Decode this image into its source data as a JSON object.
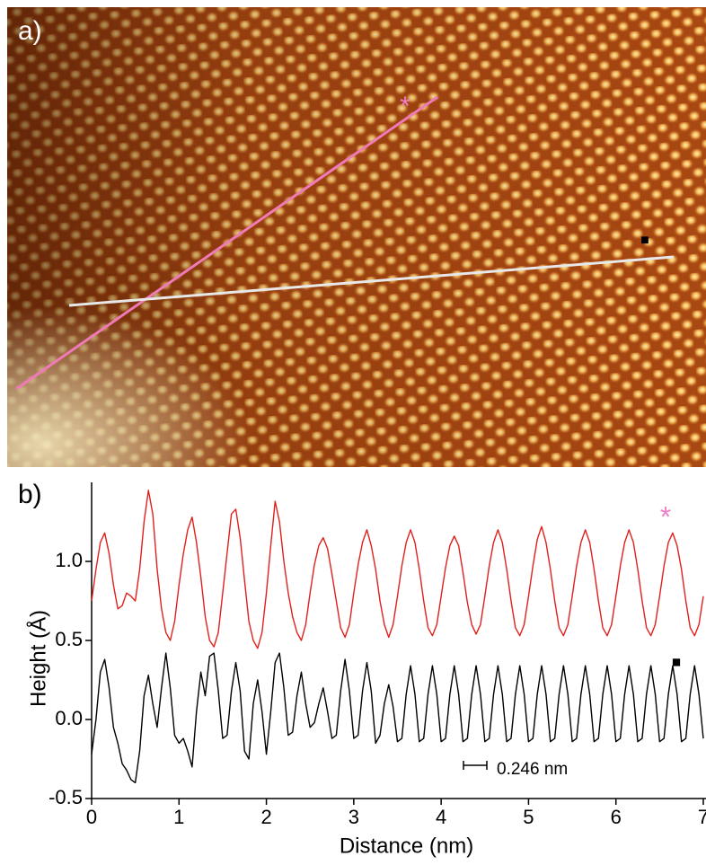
{
  "panel_labels": [
    "a)",
    "b)"
  ],
  "chart_data": {
    "type": "line",
    "xlabel": "Distance (nm)",
    "ylabel": "Height (Å)",
    "scale_bar": "0.246 nm",
    "xlim": [
      0,
      7
    ],
    "ylim": [
      -0.5,
      1.5
    ],
    "xticks": [
      0,
      1,
      2,
      3,
      4,
      5,
      6,
      7
    ],
    "yticks": [
      {
        "value": -0.5,
        "label": "-0.5"
      },
      {
        "value": 0,
        "label": "0.0"
      },
      {
        "value": 0.5,
        "label": "0.5"
      },
      {
        "value": 1,
        "label": "1.0"
      }
    ],
    "x": [
      0,
      0.05,
      0.1,
      0.15,
      0.2,
      0.25,
      0.3,
      0.35,
      0.4,
      0.45,
      0.5,
      0.55,
      0.6,
      0.65,
      0.7,
      0.75,
      0.8,
      0.85,
      0.9,
      0.95,
      1,
      1.05,
      1.1,
      1.15,
      1.2,
      1.25,
      1.3,
      1.35,
      1.4,
      1.45,
      1.5,
      1.55,
      1.6,
      1.65,
      1.7,
      1.75,
      1.8,
      1.85,
      1.9,
      1.95,
      2,
      2.05,
      2.1,
      2.15,
      2.2,
      2.25,
      2.3,
      2.35,
      2.4,
      2.45,
      2.5,
      2.55,
      2.6,
      2.65,
      2.7,
      2.75,
      2.8,
      2.85,
      2.9,
      2.95,
      3,
      3.05,
      3.1,
      3.15,
      3.2,
      3.25,
      3.3,
      3.35,
      3.4,
      3.45,
      3.5,
      3.55,
      3.6,
      3.65,
      3.7,
      3.75,
      3.8,
      3.85,
      3.9,
      3.95,
      4,
      4.05,
      4.1,
      4.15,
      4.2,
      4.25,
      4.3,
      4.35,
      4.4,
      4.45,
      4.5,
      4.55,
      4.6,
      4.65,
      4.7,
      4.75,
      4.8,
      4.85,
      4.9,
      4.95,
      5,
      5.05,
      5.1,
      5.15,
      5.2,
      5.25,
      5.3,
      5.35,
      5.4,
      5.45,
      5.5,
      5.55,
      5.6,
      5.65,
      5.7,
      5.75,
      5.8,
      5.85,
      5.9,
      5.95,
      6,
      6.05,
      6.1,
      6.15,
      6.2,
      6.25,
      6.3,
      6.35,
      6.4,
      6.45,
      6.5,
      6.55,
      6.6,
      6.65,
      6.7,
      6.75,
      6.8,
      6.85,
      6.9,
      6.95,
      7
    ],
    "series": [
      {
        "symbol": "*",
        "color": "#e0201b",
        "symbol_color": "#f080c8",
        "values": [
          0.75,
          0.95,
          1.12,
          1.18,
          1.05,
          0.85,
          0.7,
          0.72,
          0.8,
          0.78,
          0.75,
          0.95,
          1.25,
          1.45,
          1.3,
          0.95,
          0.7,
          0.55,
          0.5,
          0.62,
          0.85,
          1.05,
          1.2,
          1.28,
          1.12,
          0.9,
          0.65,
          0.5,
          0.46,
          0.55,
          0.8,
          1.05,
          1.3,
          1.33,
          1.15,
          0.88,
          0.62,
          0.5,
          0.45,
          0.55,
          0.8,
          1.1,
          1.38,
          1.25,
          1,
          0.8,
          0.65,
          0.55,
          0.5,
          0.6,
          0.8,
          0.98,
          1.1,
          1.15,
          1.08,
          0.92,
          0.75,
          0.58,
          0.52,
          0.6,
          0.8,
          0.98,
          1.12,
          1.2,
          1.1,
          0.95,
          0.75,
          0.6,
          0.52,
          0.6,
          0.78,
          0.97,
          1.12,
          1.2,
          1.12,
          0.95,
          0.75,
          0.58,
          0.53,
          0.6,
          0.78,
          0.96,
          1.1,
          1.16,
          1.1,
          0.93,
          0.74,
          0.6,
          0.54,
          0.6,
          0.78,
          0.97,
          1.12,
          1.2,
          1.12,
          0.95,
          0.75,
          0.58,
          0.53,
          0.6,
          0.78,
          0.97,
          1.14,
          1.22,
          1.12,
          0.95,
          0.75,
          0.58,
          0.53,
          0.6,
          0.78,
          0.97,
          1.12,
          1.2,
          1.12,
          0.95,
          0.75,
          0.58,
          0.53,
          0.6,
          0.78,
          0.97,
          1.12,
          1.2,
          1.12,
          0.95,
          0.75,
          0.58,
          0.53,
          0.6,
          0.78,
          0.97,
          1.12,
          1.18,
          1.1,
          0.95,
          0.75,
          0.58,
          0.53,
          0.6,
          0.78
        ]
      },
      {
        "symbol": "■",
        "color": "#000000",
        "symbol_color": "#000000",
        "values": [
          -0.22,
          0,
          0.3,
          0.38,
          0.2,
          -0.05,
          -0.15,
          -0.28,
          -0.32,
          -0.38,
          -0.4,
          -0.2,
          0.15,
          0.28,
          0.1,
          -0.05,
          0.2,
          0.42,
          0.2,
          -0.1,
          -0.15,
          -0.12,
          -0.2,
          -0.3,
          0.05,
          0.3,
          0.15,
          0.4,
          0.42,
          0.18,
          -0.12,
          -0.1,
          0.18,
          0.36,
          0.18,
          -0.2,
          -0.25,
          0.1,
          0.25,
          0.05,
          -0.22,
          0.05,
          0.36,
          0.42,
          0.2,
          -0.1,
          -0.08,
          0.15,
          0.3,
          0.1,
          -0.05,
          -0.02,
          0.1,
          0.2,
          0.05,
          -0.12,
          -0.1,
          0.18,
          0.38,
          0.18,
          -0.12,
          -0.1,
          0.18,
          0.36,
          0.18,
          -0.15,
          -0.1,
          0.1,
          0.22,
          0.08,
          -0.14,
          -0.12,
          0.16,
          0.34,
          0.16,
          -0.14,
          -0.12,
          0.16,
          0.34,
          0.16,
          -0.14,
          -0.12,
          0.16,
          0.34,
          0.16,
          -0.14,
          -0.12,
          0.16,
          0.34,
          0.16,
          -0.14,
          -0.12,
          0.16,
          0.34,
          0.16,
          -0.14,
          -0.12,
          0.16,
          0.34,
          0.16,
          -0.14,
          -0.12,
          0.16,
          0.34,
          0.16,
          -0.14,
          -0.12,
          0.16,
          0.34,
          0.16,
          -0.14,
          -0.12,
          0.16,
          0.34,
          0.16,
          -0.14,
          -0.12,
          0.16,
          0.34,
          0.16,
          -0.14,
          -0.12,
          0.16,
          0.34,
          0.16,
          -0.14,
          -0.12,
          0.16,
          0.34,
          0.16,
          -0.14,
          -0.12,
          0.16,
          0.34,
          0.16,
          -0.14,
          -0.12,
          0.16,
          0.34,
          0.16,
          -0.12
        ]
      }
    ]
  }
}
